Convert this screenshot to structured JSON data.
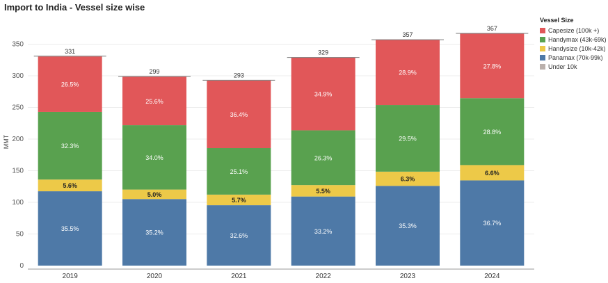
{
  "title": "Import to India - Vessel size wise",
  "legend": {
    "title": "Vessel Size",
    "items": [
      {
        "label": "Capesize (100k +)",
        "color": "#e15759"
      },
      {
        "label": "Handymax (43k-69k)",
        "color": "#59a14f"
      },
      {
        "label": "Handysize (10k-42k)",
        "color": "#edc948"
      },
      {
        "label": "Panamax (70k-99k)",
        "color": "#4e79a7"
      },
      {
        "label": "Under 10k",
        "color": "#bab0ac"
      }
    ]
  },
  "chart_data": {
    "type": "bar",
    "stacked": true,
    "ylabel": "MMT",
    "xlabel": "",
    "ylim": [
      0,
      380
    ],
    "yticks": [
      0,
      50,
      100,
      150,
      200,
      250,
      300,
      350
    ],
    "categories": [
      "2019",
      "2020",
      "2021",
      "2022",
      "2023",
      "2024"
    ],
    "totals": [
      331,
      299,
      293,
      329,
      357,
      367
    ],
    "series": [
      {
        "name": "Panamax (70k-99k)",
        "color": "#4e79a7",
        "label_color": "#ffffff",
        "values": [
          117.5,
          105.2,
          95.5,
          109.2,
          126.0,
          134.7
        ],
        "labels": [
          "35.5%",
          "35.2%",
          "32.6%",
          "33.2%",
          "35.3%",
          "36.7%"
        ]
      },
      {
        "name": "Handysize (10k-42k)",
        "color": "#edc948",
        "label_color": "#222222",
        "values": [
          18.5,
          15.0,
          16.7,
          18.1,
          22.5,
          24.2
        ],
        "labels": [
          "5.6%",
          "5.0%",
          "5.7%",
          "5.5%",
          "6.3%",
          "6.6%"
        ]
      },
      {
        "name": "Handymax (43k-69k)",
        "color": "#59a14f",
        "label_color": "#ffffff",
        "values": [
          106.9,
          101.7,
          73.5,
          86.5,
          105.3,
          105.7
        ],
        "labels": [
          "32.3%",
          "34.0%",
          "25.1%",
          "26.3%",
          "29.5%",
          "28.8%"
        ]
      },
      {
        "name": "Capesize (100k +)",
        "color": "#e15759",
        "label_color": "#ffffff",
        "values": [
          87.7,
          76.5,
          106.7,
          114.8,
          103.2,
          102.0
        ],
        "labels": [
          "26.5%",
          "25.6%",
          "36.4%",
          "34.9%",
          "28.9%",
          "27.8%"
        ]
      }
    ]
  }
}
